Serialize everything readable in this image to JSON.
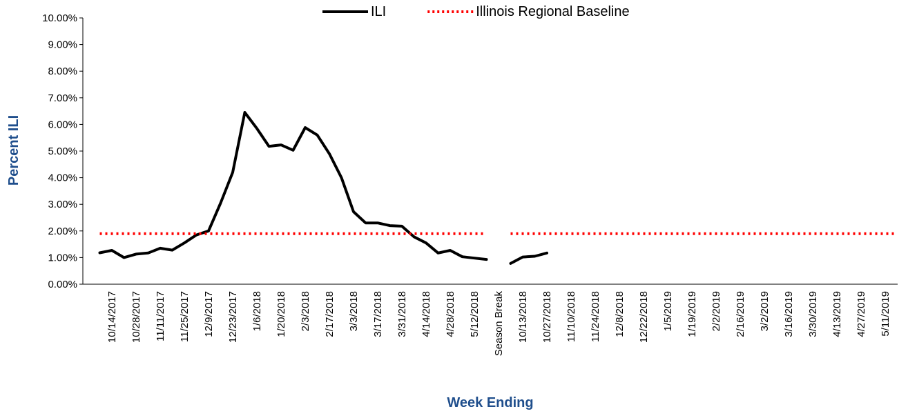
{
  "chart_data": {
    "type": "line",
    "x_label": "Week Ending",
    "y_label": "Percent ILI",
    "categories": [
      null,
      "10/14/2017",
      null,
      "10/28/2017",
      null,
      "11/11/2017",
      null,
      "11/25/2017",
      null,
      "12/9/2017",
      null,
      "12/23/2017",
      null,
      "1/6/2018",
      null,
      "1/20/2018",
      null,
      "2/3/2018",
      null,
      "2/17/2018",
      null,
      "3/3/2018",
      null,
      "3/17/2018",
      null,
      "3/31/2018",
      null,
      "4/14/2018",
      null,
      "4/28/2018",
      null,
      "5/12/2018",
      null,
      "Season Break",
      null,
      "10/13/2018",
      null,
      "10/27/2018",
      null,
      "11/10/2018",
      null,
      "11/24/2018",
      null,
      "12/8/2018",
      null,
      "12/22/2018",
      null,
      "1/5/2019",
      null,
      "1/19/2019",
      null,
      "2/2/2019",
      null,
      "2/16/2019",
      null,
      "3/2/2019",
      null,
      "3/16/2019",
      null,
      "3/30/2019",
      null,
      "4/13/2019",
      null,
      "4/27/2019",
      null,
      "5/11/2019",
      null
    ],
    "series": [
      {
        "name": "ILI",
        "color": "#000000",
        "style": "solid",
        "values": [
          1.18,
          1.27,
          1.0,
          1.13,
          1.17,
          1.35,
          1.28,
          1.55,
          1.85,
          2.0,
          3.05,
          4.2,
          6.45,
          5.85,
          5.18,
          5.23,
          5.03,
          5.88,
          5.6,
          4.9,
          4.0,
          2.72,
          2.3,
          2.3,
          2.2,
          2.18,
          1.78,
          1.55,
          1.17,
          1.27,
          1.03,
          0.98,
          0.93,
          null,
          0.78,
          1.02,
          1.05,
          1.17,
          null,
          null,
          null,
          null,
          null,
          null,
          null,
          null,
          null,
          null,
          null,
          null,
          null,
          null,
          null,
          null,
          null,
          null,
          null,
          null,
          null,
          null,
          null,
          null,
          null,
          null,
          null,
          null,
          null
        ]
      },
      {
        "name": "Illinois Regional Baseline",
        "color": "#ff0000",
        "style": "dotted",
        "values": [
          1.9,
          1.9,
          1.9,
          1.9,
          1.9,
          1.9,
          1.9,
          1.9,
          1.9,
          1.9,
          1.9,
          1.9,
          1.9,
          1.9,
          1.9,
          1.9,
          1.9,
          1.9,
          1.9,
          1.9,
          1.9,
          1.9,
          1.9,
          1.9,
          1.9,
          1.9,
          1.9,
          1.9,
          1.9,
          1.9,
          1.9,
          1.9,
          1.9,
          null,
          1.9,
          1.9,
          1.9,
          1.9,
          1.9,
          1.9,
          1.9,
          1.9,
          1.9,
          1.9,
          1.9,
          1.9,
          1.9,
          1.9,
          1.9,
          1.9,
          1.9,
          1.9,
          1.9,
          1.9,
          1.9,
          1.9,
          1.9,
          1.9,
          1.9,
          1.9,
          1.9,
          1.9,
          1.9,
          1.9,
          1.9,
          1.9,
          1.9
        ]
      }
    ],
    "ylim": [
      0,
      10
    ],
    "yticks": [
      {
        "value": 0,
        "label": "0.00%"
      },
      {
        "value": 1,
        "label": "1.00%"
      },
      {
        "value": 2,
        "label": "2.00%"
      },
      {
        "value": 3,
        "label": "3.00%"
      },
      {
        "value": 4,
        "label": "4.00%"
      },
      {
        "value": 5,
        "label": "5.00%"
      },
      {
        "value": 6,
        "label": "6.00%"
      },
      {
        "value": 7,
        "label": "7.00%"
      },
      {
        "value": 8,
        "label": "8.00%"
      },
      {
        "value": 9,
        "label": "9.00%"
      },
      {
        "value": 10,
        "label": "10.00%"
      }
    ],
    "grid": false,
    "legend": "top"
  }
}
